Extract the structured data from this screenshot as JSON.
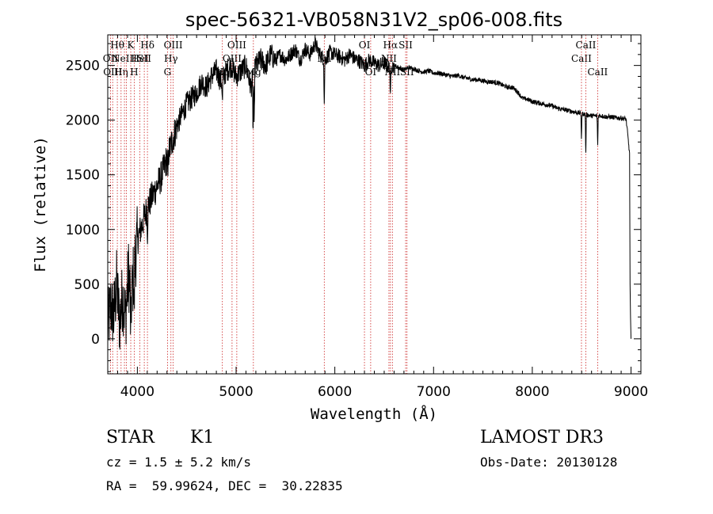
{
  "chart_data": {
    "type": "line",
    "title": "spec-56321-VB058N31V2_sp06-008.fits",
    "xlabel": "Wavelength (Å)",
    "ylabel": "Flux (relative)",
    "xlim": [
      3700,
      9100
    ],
    "ylim": [
      -320,
      2780
    ],
    "xticks": [
      4000,
      5000,
      6000,
      7000,
      8000,
      9000
    ],
    "yticks": [
      0,
      500,
      1000,
      1500,
      2000,
      2500
    ],
    "xtick_labels": [
      "4000",
      "5000",
      "6000",
      "7000",
      "8000",
      "9000"
    ],
    "ytick_labels": [
      "0",
      "500",
      "1000",
      "1500",
      "2000",
      "2500"
    ],
    "grid": false,
    "series": [
      {
        "name": "spectrum",
        "color": "#000000",
        "x": [
          3700,
          3730,
          3760,
          3790,
          3820,
          3850,
          3880,
          3910,
          3940,
          3970,
          4000,
          4050,
          4100,
          4150,
          4200,
          4250,
          4300,
          4350,
          4400,
          4450,
          4500,
          4550,
          4600,
          4650,
          4700,
          4750,
          4800,
          4850,
          4900,
          4950,
          5000,
          5050,
          5100,
          5150,
          5200,
          5250,
          5300,
          5350,
          5400,
          5450,
          5500,
          5550,
          5600,
          5650,
          5700,
          5750,
          5800,
          5850,
          5900,
          5950,
          6000,
          6050,
          6100,
          6150,
          6200,
          6250,
          6300,
          6350,
          6400,
          6450,
          6500,
          6550,
          6600,
          6650,
          6700,
          6750,
          6800,
          6850,
          6900,
          6950,
          7000,
          7050,
          7100,
          7150,
          7200,
          7250,
          7300,
          7350,
          7400,
          7450,
          7500,
          7550,
          7600,
          7650,
          7700,
          7750,
          7800,
          7850,
          7900,
          7950,
          8000,
          8050,
          8100,
          8150,
          8200,
          8250,
          8300,
          8350,
          8400,
          8450,
          8500,
          8550,
          8600,
          8650,
          8700,
          8750,
          8800,
          8850,
          8900,
          8950,
          8985,
          8990,
          8995,
          9000
        ],
        "y": [
          100,
          300,
          200,
          500,
          150,
          400,
          200,
          600,
          350,
          700,
          900,
          1050,
          1200,
          1300,
          1400,
          1500,
          1650,
          1800,
          1950,
          2050,
          2150,
          2200,
          2250,
          2350,
          2300,
          2400,
          2450,
          2350,
          2450,
          2500,
          2400,
          2450,
          2500,
          2300,
          2500,
          2550,
          2500,
          2600,
          2550,
          2600,
          2550,
          2600,
          2650,
          2550,
          2650,
          2600,
          2700,
          2600,
          2550,
          2620,
          2600,
          2580,
          2550,
          2600,
          2560,
          2540,
          2500,
          2550,
          2520,
          2500,
          2520,
          2480,
          2500,
          2480,
          2460,
          2480,
          2470,
          2450,
          2440,
          2450,
          2430,
          2430,
          2420,
          2410,
          2400,
          2410,
          2390,
          2380,
          2370,
          2370,
          2360,
          2350,
          2350,
          2340,
          2320,
          2300,
          2300,
          2260,
          2200,
          2190,
          2170,
          2160,
          2150,
          2140,
          2130,
          2110,
          2100,
          2090,
          2080,
          2070,
          2060,
          2050,
          2040,
          2040,
          2040,
          2030,
          2030,
          2020,
          2020,
          2010,
          1700,
          500,
          200,
          0
        ]
      }
    ],
    "absorption_features": [
      {
        "x": 3933,
        "depth": 500
      },
      {
        "x": 3968,
        "depth": 450
      },
      {
        "x": 4102,
        "depth": 250
      },
      {
        "x": 4308,
        "depth": 300
      },
      {
        "x": 4861,
        "depth": 250
      },
      {
        "x": 5172,
        "depth": 550
      },
      {
        "x": 5183,
        "depth": 600
      },
      {
        "x": 5893,
        "depth": 450
      },
      {
        "x": 6563,
        "depth": 330
      },
      {
        "x": 8498,
        "depth": 250
      },
      {
        "x": 8542,
        "depth": 400
      },
      {
        "x": 8662,
        "depth": 300
      }
    ],
    "line_markers": [
      {
        "x": 3727,
        "labels": [
          "OII"
        ],
        "level": 2
      },
      {
        "x": 3750,
        "labels": [
          "OIII"
        ],
        "level": 3
      },
      {
        "x": 3797,
        "labels": [
          "Hθ"
        ],
        "level": 1
      },
      {
        "x": 3835,
        "labels": [
          "Hη"
        ],
        "level": 3
      },
      {
        "x": 3869,
        "labels": [
          "NeIII"
        ],
        "level": 2
      },
      {
        "x": 3889,
        "labels": [],
        "level": 0
      },
      {
        "x": 3933,
        "labels": [
          "K"
        ],
        "level": 1
      },
      {
        "x": 3968,
        "labels": [
          "H"
        ],
        "level": 3
      },
      {
        "x": 4026,
        "labels": [
          "HeI"
        ],
        "level": 2
      },
      {
        "x": 4070,
        "labels": [
          "SII"
        ],
        "level": 2
      },
      {
        "x": 4102,
        "labels": [
          "Hδ"
        ],
        "level": 1
      },
      {
        "x": 4305,
        "labels": [
          "G"
        ],
        "level": 3
      },
      {
        "x": 4340,
        "labels": [
          "Hγ"
        ],
        "level": 2
      },
      {
        "x": 4363,
        "labels": [
          "OIII"
        ],
        "level": 1
      },
      {
        "x": 4861,
        "labels": [
          "Hβ"
        ],
        "level": 3
      },
      {
        "x": 4959,
        "labels": [
          "OIII"
        ],
        "level": 2
      },
      {
        "x": 5007,
        "labels": [
          "OIII"
        ],
        "level": 1
      },
      {
        "x": 5175,
        "labels": [
          "Mg"
        ],
        "level": 3
      },
      {
        "x": 5893,
        "labels": [
          "Na"
        ],
        "level": 2
      },
      {
        "x": 6300,
        "labels": [
          "OI"
        ],
        "level": 1
      },
      {
        "x": 6363,
        "labels": [
          "OI"
        ],
        "level": 3
      },
      {
        "x": 6548,
        "labels": [
          "NII"
        ],
        "level": 2
      },
      {
        "x": 6563,
        "labels": [
          "Hα"
        ],
        "level": 1
      },
      {
        "x": 6583,
        "labels": [
          "NII"
        ],
        "level": 3
      },
      {
        "x": 6717,
        "labels": [
          "SII"
        ],
        "level": 1
      },
      {
        "x": 6731,
        "labels": [
          "SII"
        ],
        "level": 3
      },
      {
        "x": 8498,
        "labels": [
          "CaII"
        ],
        "level": 2
      },
      {
        "x": 8542,
        "labels": [
          "CaII"
        ],
        "level": 1
      },
      {
        "x": 8662,
        "labels": [
          "CaII"
        ],
        "level": 3
      }
    ],
    "marker_color": "#cc2222"
  },
  "info": {
    "object_class": "STAR",
    "subclass": "K1",
    "survey": "LAMOST DR3",
    "cz": "cz = 1.5 ± 5.2 km/s",
    "obs_date": "Obs-Date: 20130128",
    "coords": "RA =  59.99624, DEC =  30.22835"
  }
}
